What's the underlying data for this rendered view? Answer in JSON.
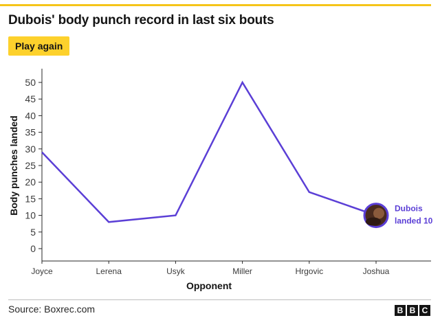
{
  "title": "Dubois' body punch record in last six bouts",
  "button": {
    "label": "Play again"
  },
  "source": "Source: Boxrec.com",
  "logo": [
    "B",
    "B",
    "C"
  ],
  "colors": {
    "line": "#5b3fd6",
    "accent": "#fdd12c",
    "annotation": "#5b3fd6"
  },
  "chart_data": {
    "type": "line",
    "categories": [
      "Joyce",
      "Lerena",
      "Usyk",
      "Miller",
      "Hrgovic",
      "Joshua"
    ],
    "values": [
      29,
      8,
      10,
      50,
      17,
      10
    ],
    "xlabel": "Opponent",
    "ylabel": "Body punches landed",
    "ylim": [
      0,
      50
    ],
    "yticks": [
      0,
      5,
      10,
      15,
      20,
      25,
      30,
      35,
      40,
      45,
      50
    ],
    "grid": false,
    "annotation": {
      "category": "Joshua",
      "lines": [
        "Dubois",
        "landed 10"
      ],
      "marker": "boxer-photo-icon"
    }
  }
}
